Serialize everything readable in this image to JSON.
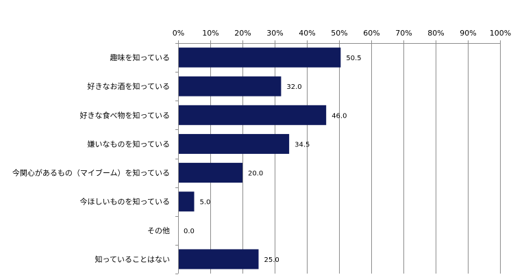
{
  "chart_data": {
    "type": "bar",
    "orientation": "horizontal",
    "categories": [
      "趣味を知っている",
      "好きなお酒を知っている",
      "好きな食べ物を知っている",
      "嫌いなものを知っている",
      "今関心があるもの（マイブーム）を知っている",
      "今ほしいものを知っている",
      "その他",
      "知っていることはない"
    ],
    "values": [
      50.5,
      32.0,
      46.0,
      34.5,
      20.0,
      5.0,
      0.0,
      25.0
    ],
    "value_labels": [
      "50.5",
      "32.0",
      "46.0",
      "34.5",
      "20.0",
      "5.0",
      "0.0",
      "25.0"
    ],
    "xlim": [
      0,
      100
    ],
    "xticks": [
      0,
      10,
      20,
      30,
      40,
      50,
      60,
      70,
      80,
      90,
      100
    ],
    "xtick_labels": [
      "0%",
      "10%",
      "20%",
      "30%",
      "40%",
      "50%",
      "60%",
      "70%",
      "80%",
      "90%",
      "100%"
    ],
    "xaxis_position": "top",
    "grid": true,
    "bar_color": "#0f1a5c",
    "title": "",
    "xlabel": "",
    "ylabel": ""
  }
}
